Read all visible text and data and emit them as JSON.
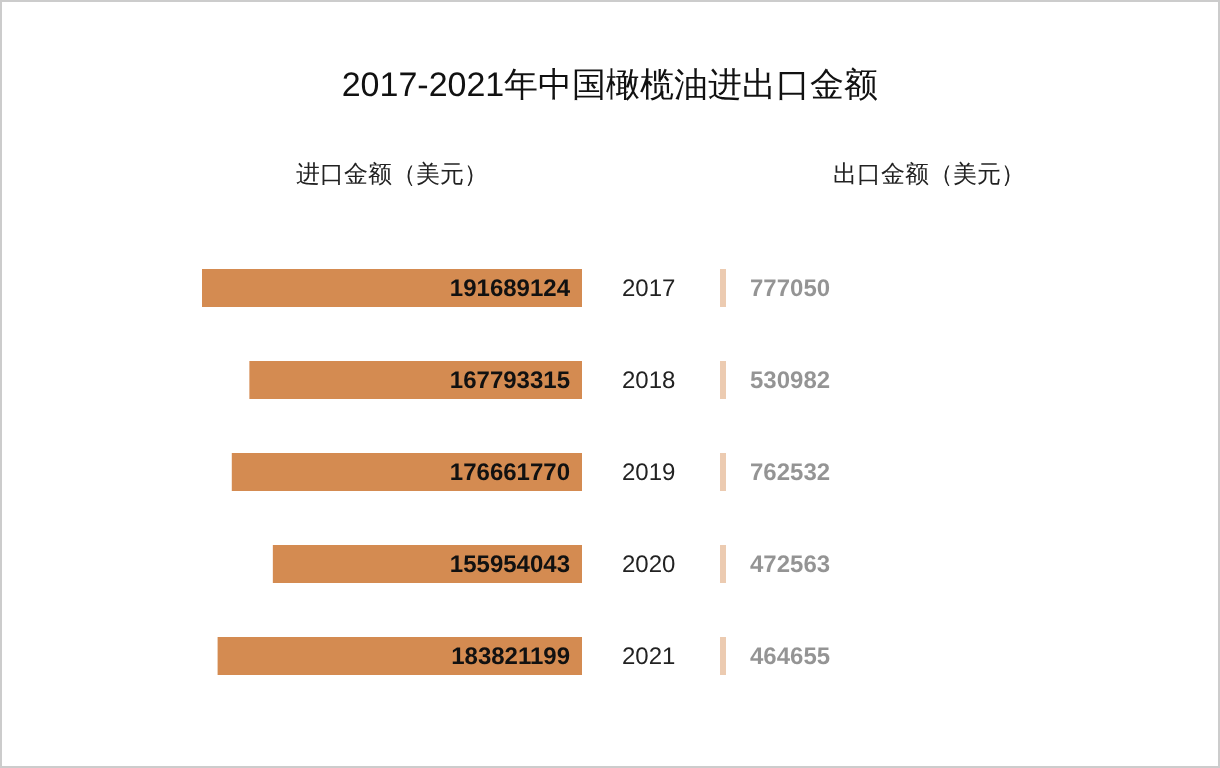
{
  "chart_data": {
    "type": "bar",
    "orientation": "horizontal",
    "title": "2017-2021年中国橄榄油进出口金额",
    "categories": [
      "2017",
      "2018",
      "2019",
      "2020",
      "2021"
    ],
    "series": [
      {
        "name": "进口金额（美元）",
        "color": "#d48b51",
        "values": [
          191689124,
          167793315,
          176661770,
          155954043,
          183821199
        ]
      },
      {
        "name": "出口金额（美元）",
        "values": [
          777050,
          530982,
          762532,
          472563,
          464655
        ]
      }
    ],
    "data_labels": true
  }
}
